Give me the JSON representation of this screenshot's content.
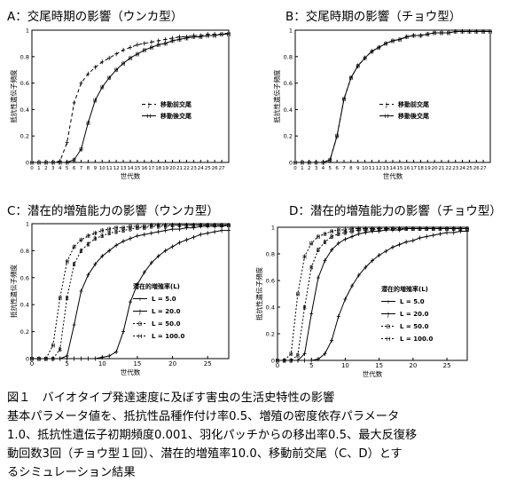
{
  "panels": [
    {
      "title": "A：交尾時期の影響（ウンカ型）",
      "chart_data": {
        "type": "line",
        "xlabel": "世代数",
        "ylabel": "抵抗性遺伝子頻度",
        "xlim": [
          0,
          28
        ],
        "ylim": [
          0,
          1
        ],
        "x_ticks": [
          "0",
          "1",
          "2",
          "3",
          "4",
          "5",
          "6",
          "7",
          "8",
          "9",
          "10",
          "11",
          "12",
          "13",
          "14",
          "15",
          "16",
          "17",
          "18",
          "19",
          "20",
          "21",
          "22",
          "23",
          "24",
          "25",
          "26",
          "27"
        ],
        "y_ticks": [
          "0",
          "0.2",
          "0.4",
          "0.6",
          "0.8",
          "1"
        ],
        "grid": false,
        "legend_position": "right-middle",
        "series": [
          {
            "name": "移動前交尾",
            "marker": "J",
            "x": [
              0,
              1,
              2,
              3,
              4,
              5,
              6,
              7,
              8,
              9,
              10,
              11,
              12,
              13,
              14,
              15,
              16,
              17,
              18,
              19,
              20,
              21,
              22,
              23,
              24,
              25,
              26,
              27,
              28
            ],
            "y": [
              0,
              0,
              0,
              0,
              0.01,
              0.15,
              0.45,
              0.6,
              0.67,
              0.72,
              0.76,
              0.79,
              0.82,
              0.85,
              0.87,
              0.89,
              0.9,
              0.91,
              0.92,
              0.93,
              0.94,
              0.95,
              0.95,
              0.96,
              0.96,
              0.97,
              0.97,
              0.97,
              0.98
            ]
          },
          {
            "name": "移動後交尾",
            "marker": "H",
            "x": [
              0,
              1,
              2,
              3,
              4,
              5,
              6,
              7,
              8,
              9,
              10,
              11,
              12,
              13,
              14,
              15,
              16,
              17,
              18,
              19,
              20,
              21,
              22,
              23,
              24,
              25,
              26,
              27,
              28
            ],
            "y": [
              0,
              0,
              0,
              0,
              0,
              0,
              0.02,
              0.1,
              0.3,
              0.47,
              0.57,
              0.64,
              0.7,
              0.75,
              0.79,
              0.82,
              0.85,
              0.87,
              0.89,
              0.9,
              0.92,
              0.93,
              0.94,
              0.95,
              0.95,
              0.96,
              0.96,
              0.97,
              0.97
            ]
          }
        ]
      }
    },
    {
      "title": "B：交尾時期の影響（チョウ型）",
      "chart_data": {
        "type": "line",
        "xlabel": "世代数",
        "ylabel": "抵抗性遺伝子頻度",
        "xlim": [
          0,
          28
        ],
        "ylim": [
          0,
          1
        ],
        "x_ticks": [
          "0",
          "1",
          "2",
          "3",
          "4",
          "5",
          "6",
          "7",
          "8",
          "9",
          "10",
          "11",
          "12",
          "13",
          "14",
          "15",
          "16",
          "17",
          "18",
          "19",
          "20",
          "21",
          "22",
          "23",
          "24",
          "25",
          "26",
          "27"
        ],
        "y_ticks": [
          "0",
          "0.2",
          "0.4",
          "0.6",
          "0.8",
          "1"
        ],
        "grid": false,
        "legend_position": "right-middle",
        "series": [
          {
            "name": "移動前交尾",
            "marker": "J",
            "x": [
              0,
              1,
              2,
              3,
              4,
              5,
              6,
              7,
              8,
              9,
              10,
              11,
              12,
              13,
              14,
              15,
              16,
              17,
              18,
              19,
              20,
              21,
              22,
              23,
              24,
              25,
              26,
              27,
              28
            ],
            "y": [
              0,
              0,
              0,
              0,
              0,
              0.02,
              0.2,
              0.48,
              0.64,
              0.73,
              0.79,
              0.84,
              0.87,
              0.9,
              0.92,
              0.93,
              0.95,
              0.96,
              0.96,
              0.97,
              0.98,
              0.98,
              0.98,
              0.99,
              0.99,
              0.99,
              0.99,
              0.99,
              0.99
            ]
          },
          {
            "name": "移動後交尾",
            "marker": "H",
            "x": [
              0,
              1,
              2,
              3,
              4,
              5,
              6,
              7,
              8,
              9,
              10,
              11,
              12,
              13,
              14,
              15,
              16,
              17,
              18,
              19,
              20,
              21,
              22,
              23,
              24,
              25,
              26,
              27,
              28
            ],
            "y": [
              0,
              0,
              0,
              0,
              0,
              0.02,
              0.2,
              0.48,
              0.64,
              0.73,
              0.79,
              0.84,
              0.87,
              0.9,
              0.92,
              0.93,
              0.95,
              0.96,
              0.96,
              0.97,
              0.98,
              0.98,
              0.98,
              0.99,
              0.99,
              0.99,
              0.99,
              0.99,
              0.99
            ]
          }
        ]
      }
    },
    {
      "title": "C：潜在的増殖能力の影響（ウンカ型）",
      "chart_data": {
        "type": "line",
        "xlabel": "世代数",
        "ylabel": "抵抗性遺伝子頻度",
        "xlim": [
          0,
          28
        ],
        "ylim": [
          0,
          1
        ],
        "x_ticks": [
          "0",
          "5",
          "10",
          "15",
          "20",
          "25"
        ],
        "y_ticks": [
          "0",
          "0.2",
          "0.4",
          "0.6",
          "0.8",
          "1"
        ],
        "grid": false,
        "legend_position": "right-middle",
        "legend_title": "潜在的増殖率(L)",
        "series": [
          {
            "name": "L = 5.0",
            "marker": "+",
            "x": [
              0,
              1,
              2,
              3,
              4,
              5,
              6,
              7,
              8,
              9,
              10,
              11,
              12,
              13,
              14,
              15,
              16,
              17,
              18,
              19,
              20,
              21,
              22,
              23,
              24,
              25,
              26,
              27,
              28
            ],
            "y": [
              0,
              0,
              0,
              0,
              0,
              0,
              0,
              0,
              0,
              0,
              0.01,
              0.02,
              0.05,
              0.2,
              0.42,
              0.55,
              0.64,
              0.71,
              0.76,
              0.8,
              0.83,
              0.86,
              0.88,
              0.9,
              0.92,
              0.93,
              0.94,
              0.95,
              0.95
            ]
          },
          {
            "name": "L = 20.0",
            "marker": "J",
            "x": [
              0,
              1,
              2,
              3,
              4,
              5,
              6,
              7,
              8,
              9,
              10,
              11,
              12,
              13,
              14,
              15,
              16,
              17,
              18,
              19,
              20,
              21,
              22,
              23,
              24,
              25,
              26,
              27,
              28
            ],
            "y": [
              0,
              0,
              0,
              0,
              0,
              0.02,
              0.25,
              0.5,
              0.62,
              0.7,
              0.76,
              0.8,
              0.84,
              0.87,
              0.89,
              0.91,
              0.92,
              0.93,
              0.94,
              0.95,
              0.96,
              0.96,
              0.97,
              0.97,
              0.98,
              0.98,
              0.98,
              0.98,
              0.99
            ]
          },
          {
            "name": "L = 50.0",
            "marker": "B",
            "x": [
              0,
              1,
              2,
              3,
              4,
              5,
              6,
              7,
              8,
              9,
              10,
              11,
              12,
              13,
              14,
              15,
              16,
              17,
              18,
              19,
              20,
              21,
              22,
              23,
              24,
              25,
              26,
              27,
              28
            ],
            "y": [
              0,
              0,
              0,
              0,
              0.07,
              0.45,
              0.7,
              0.8,
              0.85,
              0.89,
              0.91,
              0.93,
              0.94,
              0.95,
              0.96,
              0.97,
              0.97,
              0.98,
              0.98,
              0.98,
              0.99,
              0.99,
              0.99,
              0.99,
              0.99,
              0.99,
              0.99,
              0.99,
              0.99
            ]
          },
          {
            "name": "L = 100.0",
            "marker": "H",
            "x": [
              0,
              1,
              2,
              3,
              4,
              5,
              6,
              7,
              8,
              9,
              10,
              11,
              12,
              13,
              14,
              15,
              16,
              17,
              18,
              19,
              20,
              21,
              22,
              23,
              24,
              25,
              26,
              27,
              28
            ],
            "y": [
              0,
              0,
              0,
              0.1,
              0.45,
              0.72,
              0.83,
              0.88,
              0.91,
              0.93,
              0.95,
              0.96,
              0.97,
              0.97,
              0.98,
              0.98,
              0.98,
              0.99,
              0.99,
              0.99,
              0.99,
              0.99,
              0.99,
              0.99,
              0.99,
              0.99,
              0.99,
              0.99,
              0.99
            ]
          }
        ]
      }
    },
    {
      "title": "D：潜在的増殖能力の影響（チョウ型）",
      "chart_data": {
        "type": "line",
        "xlabel": "世代数",
        "ylabel": "抵抗性遺伝子頻度",
        "xlim": [
          0,
          28
        ],
        "ylim": [
          0,
          1
        ],
        "x_ticks": [
          "0",
          "5",
          "10",
          "15",
          "20",
          "25"
        ],
        "y_ticks": [
          "0",
          "0.2",
          "0.4",
          "0.6",
          "0.8",
          "1"
        ],
        "grid": false,
        "legend_position": "right-middle",
        "legend_title": "潜在的増殖率(L)",
        "series": [
          {
            "name": "L = 5.0",
            "marker": "+",
            "x": [
              0,
              1,
              2,
              3,
              4,
              5,
              6,
              7,
              8,
              9,
              10,
              11,
              12,
              13,
              14,
              15,
              16,
              17,
              18,
              19,
              20,
              21,
              22,
              23,
              24,
              25,
              26,
              27,
              28
            ],
            "y": [
              0,
              0,
              0,
              0,
              0,
              0,
              0.01,
              0.05,
              0.15,
              0.33,
              0.46,
              0.56,
              0.64,
              0.7,
              0.75,
              0.79,
              0.82,
              0.85,
              0.87,
              0.89,
              0.9,
              0.92,
              0.93,
              0.94,
              0.95,
              0.96,
              0.96,
              0.97,
              0.97
            ]
          },
          {
            "name": "L = 20.0",
            "marker": "J",
            "x": [
              0,
              1,
              2,
              3,
              4,
              5,
              6,
              7,
              8,
              9,
              10,
              11,
              12,
              13,
              14,
              15,
              16,
              17,
              18,
              19,
              20,
              21,
              22,
              23,
              24,
              25,
              26,
              27,
              28
            ],
            "y": [
              0,
              0,
              0,
              0,
              0.05,
              0.35,
              0.62,
              0.75,
              0.83,
              0.88,
              0.91,
              0.93,
              0.95,
              0.96,
              0.97,
              0.97,
              0.98,
              0.98,
              0.98,
              0.99,
              0.99,
              0.99,
              0.99,
              0.99,
              0.99,
              0.99,
              0.99,
              0.99,
              0.99
            ]
          },
          {
            "name": "L = 50.0",
            "marker": "B",
            "x": [
              0,
              1,
              2,
              3,
              4,
              5,
              6,
              7,
              8,
              9,
              10,
              11,
              12,
              13,
              14,
              15,
              16,
              17,
              18,
              19,
              20,
              21,
              22,
              23,
              24,
              25,
              26,
              27,
              28
            ],
            "y": [
              0,
              0,
              0,
              0.04,
              0.4,
              0.7,
              0.83,
              0.89,
              0.93,
              0.95,
              0.96,
              0.97,
              0.98,
              0.98,
              0.98,
              0.99,
              0.99,
              0.99,
              0.99,
              0.99,
              0.99,
              0.99,
              0.99,
              0.99,
              0.99,
              0.99,
              0.99,
              0.99,
              0.99
            ]
          },
          {
            "name": "L = 100.0",
            "marker": "H",
            "x": [
              0,
              1,
              2,
              3,
              4,
              5,
              6,
              7,
              8,
              9,
              10,
              11,
              12,
              13,
              14,
              15,
              16,
              17,
              18,
              19,
              20,
              21,
              22,
              23,
              24,
              25,
              26,
              27,
              28
            ],
            "y": [
              0,
              0,
              0.05,
              0.5,
              0.78,
              0.88,
              0.93,
              0.95,
              0.97,
              0.98,
              0.98,
              0.99,
              0.99,
              0.99,
              0.99,
              0.99,
              0.99,
              0.99,
              0.99,
              0.99,
              0.99,
              0.99,
              0.99,
              0.99,
              0.99,
              0.99,
              0.99,
              0.99,
              0.99
            ]
          }
        ]
      }
    }
  ],
  "caption": {
    "lines": [
      "図１　バイオタイプ発達速度に及ぼす害虫の生活史特性の影響",
      "基本パラメータ値を、抵抗性品種作付け率0.5、増殖の密度依存パラメータ",
      "1.0、抵抗性遺伝子初期頻度0.001、羽化パッチからの移出率0.5、最大反復移",
      "動回数3回（チョウ型１回）、潜在的増殖率10.0、移動前交尾（C、D）とす",
      "るシミュレーション結果"
    ]
  }
}
